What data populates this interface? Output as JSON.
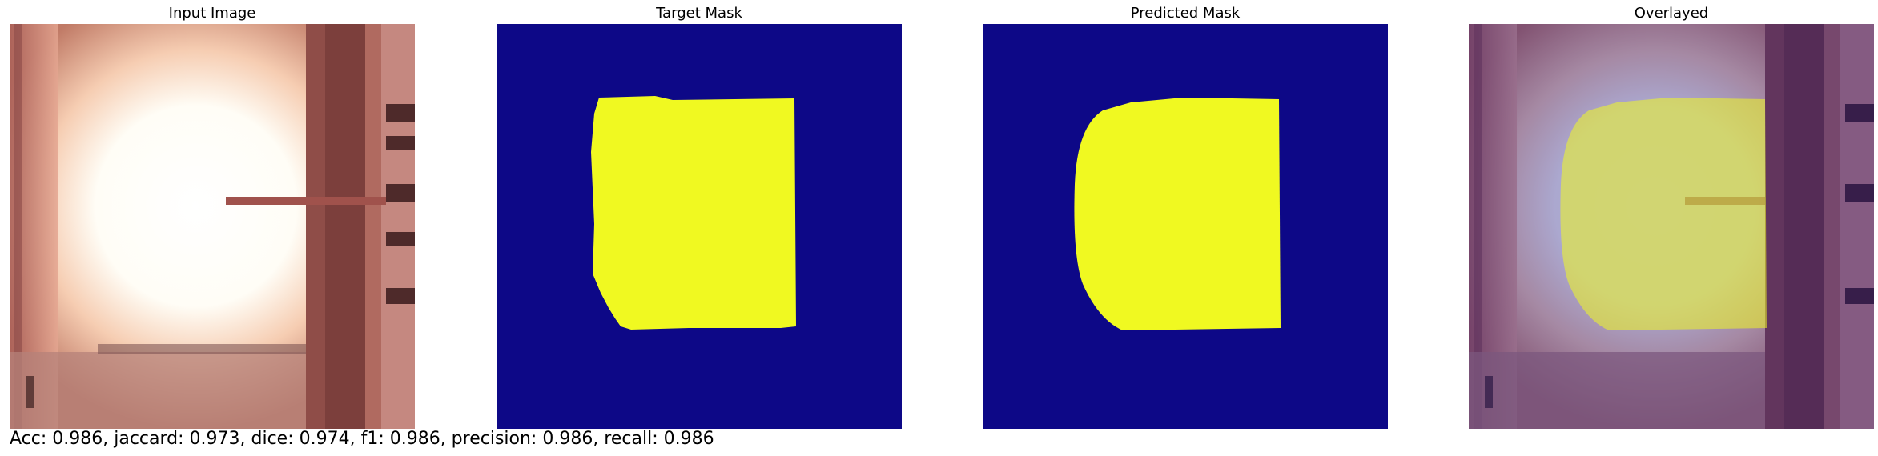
{
  "panels": [
    {
      "title": "Input Image"
    },
    {
      "title": "Target Mask"
    },
    {
      "title": "Predicted Mask"
    },
    {
      "title": "Overlayed"
    }
  ],
  "metrics": "Acc: 0.986, jaccard: 0.973, dice: 0.974, f1: 0.986, precision: 0.986, recall: 0.986",
  "colors": {
    "background_class": "#0d0887",
    "foreground_class": "#f0f921"
  }
}
